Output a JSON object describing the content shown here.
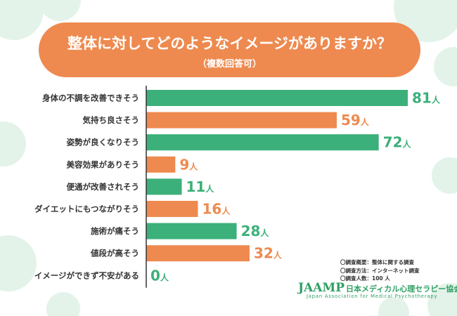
{
  "colors": {
    "green": "#3cb07a",
    "orange": "#ee8a4f",
    "title_bg": "#ee8a4f",
    "circle": "#e3f3e9",
    "axis": "#333333",
    "label": "#333333"
  },
  "title": {
    "main": "整体に対してどのようなイメージがありますか？",
    "sub": "（複数回答可）"
  },
  "chart_data": {
    "type": "bar",
    "orientation": "horizontal",
    "unit": "人",
    "categories": [
      "身体の不調を改善できそう",
      "気持ち良さそう",
      "姿勢が良くなりそう",
      "美容効果がありそう",
      "便通が改善されそう",
      "ダイエットにもつながりそう",
      "施術が痛そう",
      "値段が高そう",
      "イメージができず不安がある"
    ],
    "values": [
      81,
      59,
      72,
      9,
      11,
      16,
      28,
      32,
      0
    ],
    "bar_colors": [
      "green",
      "orange",
      "green",
      "orange",
      "green",
      "orange",
      "green",
      "orange",
      "green"
    ],
    "xlim": [
      0,
      81
    ]
  },
  "notes": [
    "〇調査概要：整体に関する調査",
    "〇調査方法：インターネット調査",
    "〇調査人数：100 人"
  ],
  "logo": {
    "name": "JAAMP",
    "org_jp": "日本メディカル心理セラピー協会",
    "org_en": "Japan Association for Medical Psychotherapy"
  }
}
